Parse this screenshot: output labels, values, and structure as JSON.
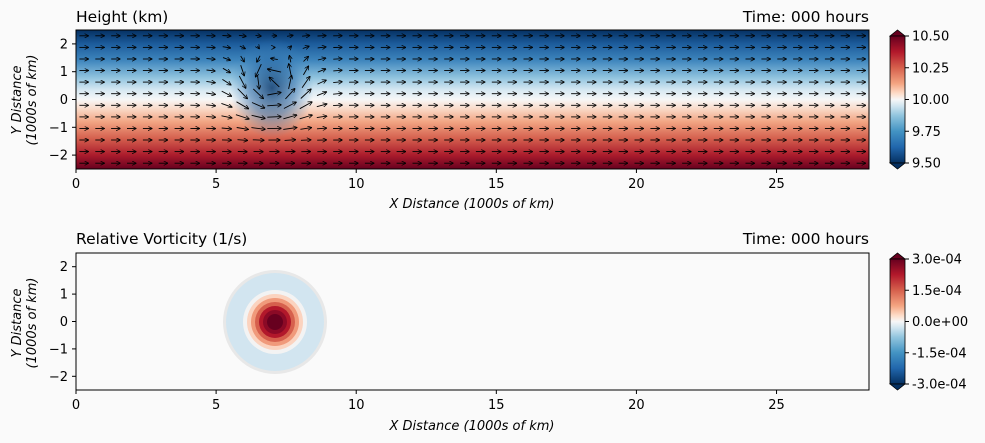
{
  "chart_data": [
    {
      "type": "heatmap",
      "title": "Height (km)",
      "time_label": "Time: 000 hours",
      "xlabel": "X Distance (1000s of km)",
      "ylabel_line1": "Y Distance",
      "ylabel_line2": "(1000s of km)",
      "xlim": [
        0,
        28.3
      ],
      "ylim": [
        -2.5,
        2.5
      ],
      "xticks": [
        "0",
        "5",
        "10",
        "15",
        "20",
        "25"
      ],
      "xtick_values": [
        0,
        5,
        10,
        15,
        20,
        25
      ],
      "yticks": [
        "2",
        "1",
        "0",
        "−1",
        "−2"
      ],
      "ytick_values": [
        2,
        1,
        0,
        -1,
        -2
      ],
      "colormap": "RdBu_r",
      "colorbar": {
        "range": [
          9.5,
          10.5
        ],
        "ticks": [
          "10.50",
          "10.25",
          "10.00",
          "9.75",
          "9.50"
        ],
        "tick_values": [
          10.5,
          10.25,
          10.0,
          9.75,
          9.5
        ]
      },
      "field": "zonal height gradient: high (~10.5) at y=-2.5, low (~9.5) at y=2.5, with a cyclonic low centred at x=7, y=0.7",
      "vectors": "eastward wind arrows with cyclonic circulation around x=7, y=0.5",
      "colors": {
        "low": "#053061",
        "mid": "#f7f7f7",
        "high": "#67001f"
      }
    },
    {
      "type": "heatmap",
      "title": "Relative Vorticity (1/s)",
      "time_label": "Time: 000 hours",
      "xlabel": "X Distance (1000s of km)",
      "ylabel_line1": "Y Distance",
      "ylabel_line2": "(1000s of km)",
      "xlim": [
        0,
        28.3
      ],
      "ylim": [
        -2.5,
        2.5
      ],
      "xticks": [
        "0",
        "5",
        "10",
        "15",
        "20",
        "25"
      ],
      "xtick_values": [
        0,
        5,
        10,
        15,
        20,
        25
      ],
      "yticks": [
        "2",
        "1",
        "0",
        "−1",
        "−2"
      ],
      "ytick_values": [
        2,
        1,
        0,
        -1,
        -2
      ],
      "colormap": "RdBu_r",
      "colorbar": {
        "range": [
          -0.0003,
          0.0003
        ],
        "ticks": [
          "3.0e-04",
          "1.5e-04",
          "0.0e+00",
          "-1.5e-04",
          "-3.0e-04"
        ],
        "tick_values": [
          0.0003,
          0.00015,
          0.0,
          -0.00015,
          -0.0003
        ]
      },
      "field": "positive vorticity core at x=7.1, y=0 surrounded by weak negative ring",
      "colors": {
        "low": "#053061",
        "mid": "#f7f7f7",
        "high": "#67001f"
      }
    }
  ]
}
